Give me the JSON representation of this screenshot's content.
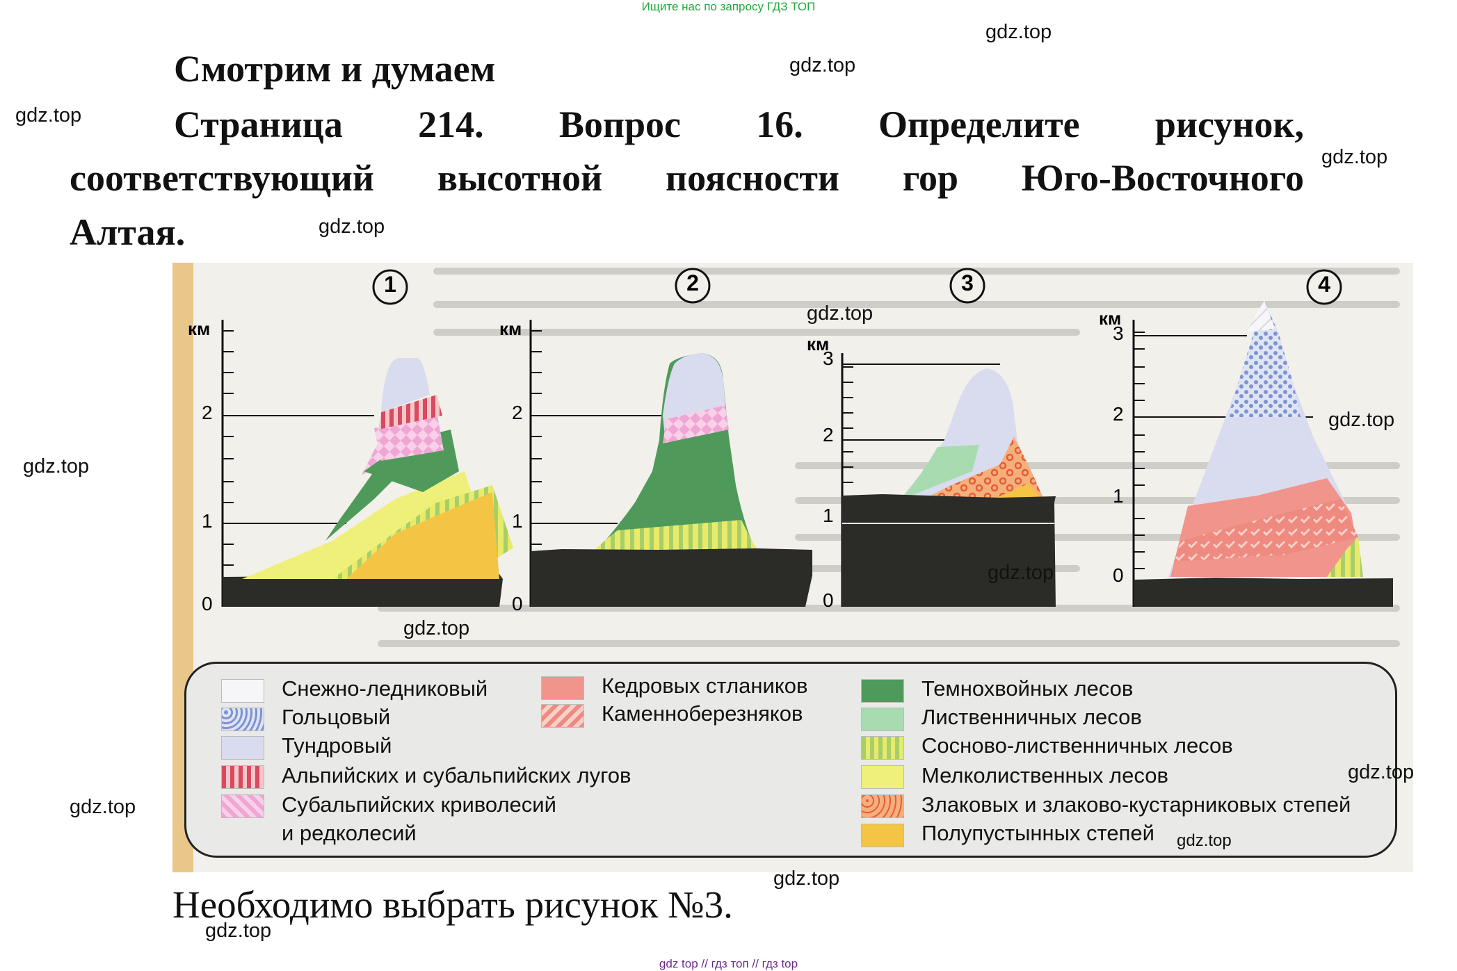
{
  "watermark_top": "Ищите нас по запросу ГДЗ ТОП",
  "watermark_bottom": "gdz top  //  гдз топ  //  гдз top",
  "watermark": "gdz.top",
  "heading": "Смотрим и думаем",
  "question": {
    "line1": [
      "Страница",
      "214.",
      "Вопрос",
      "16.",
      "Определите",
      "рисунок,"
    ],
    "line2": [
      "соответствующий",
      "высотной",
      "поясности",
      "гор",
      "Юго-Восточного"
    ],
    "line3": "Алтая."
  },
  "answer": "Необходимо выбрать рисунок №3.",
  "figure": {
    "km_label": "км",
    "diagrams": [
      {
        "number": "1",
        "ticks": [
          "2",
          "1",
          "0"
        ]
      },
      {
        "number": "2",
        "ticks": [
          "2",
          "1",
          "0"
        ]
      },
      {
        "number": "3",
        "ticks": [
          "3",
          "2",
          "1",
          "0"
        ]
      },
      {
        "number": "4",
        "ticks": [
          "3",
          "2",
          "1",
          "0"
        ]
      }
    ]
  },
  "legend": {
    "col1": [
      "Снежно-ледниковый",
      "Гольцовый",
      "Тундровый",
      "Альпийских и субальпийских лугов",
      "Субальпийских криволесий",
      "и редколесий"
    ],
    "col2": [
      "Кедровых стлаников",
      "Каменноберезняков"
    ],
    "col3": [
      "Темнохвойных лесов",
      "Лиственничных лесов",
      "Сосново-лиственничных лесов",
      "Мелколиственных лесов",
      "Злаковых и злаково-кустарниковых степей",
      "Полупустынных степей"
    ]
  },
  "colors": {
    "snow": "#f2f2f4",
    "golets": "#c9d3ee",
    "tundra": "#d9dcef",
    "meadow": "#d84a5e",
    "krivoles": "#f0a6d2",
    "kedr": "#f0948c",
    "kamenno": "#ee8a80",
    "darkconifer": "#4f9a5a",
    "larch": "#a8dcb0",
    "pine_larch": "#e4e060",
    "smallleaf": "#eef07a",
    "steppe": "#f5a976",
    "semidesert": "#f4c544",
    "ground": "#2b2b28"
  }
}
